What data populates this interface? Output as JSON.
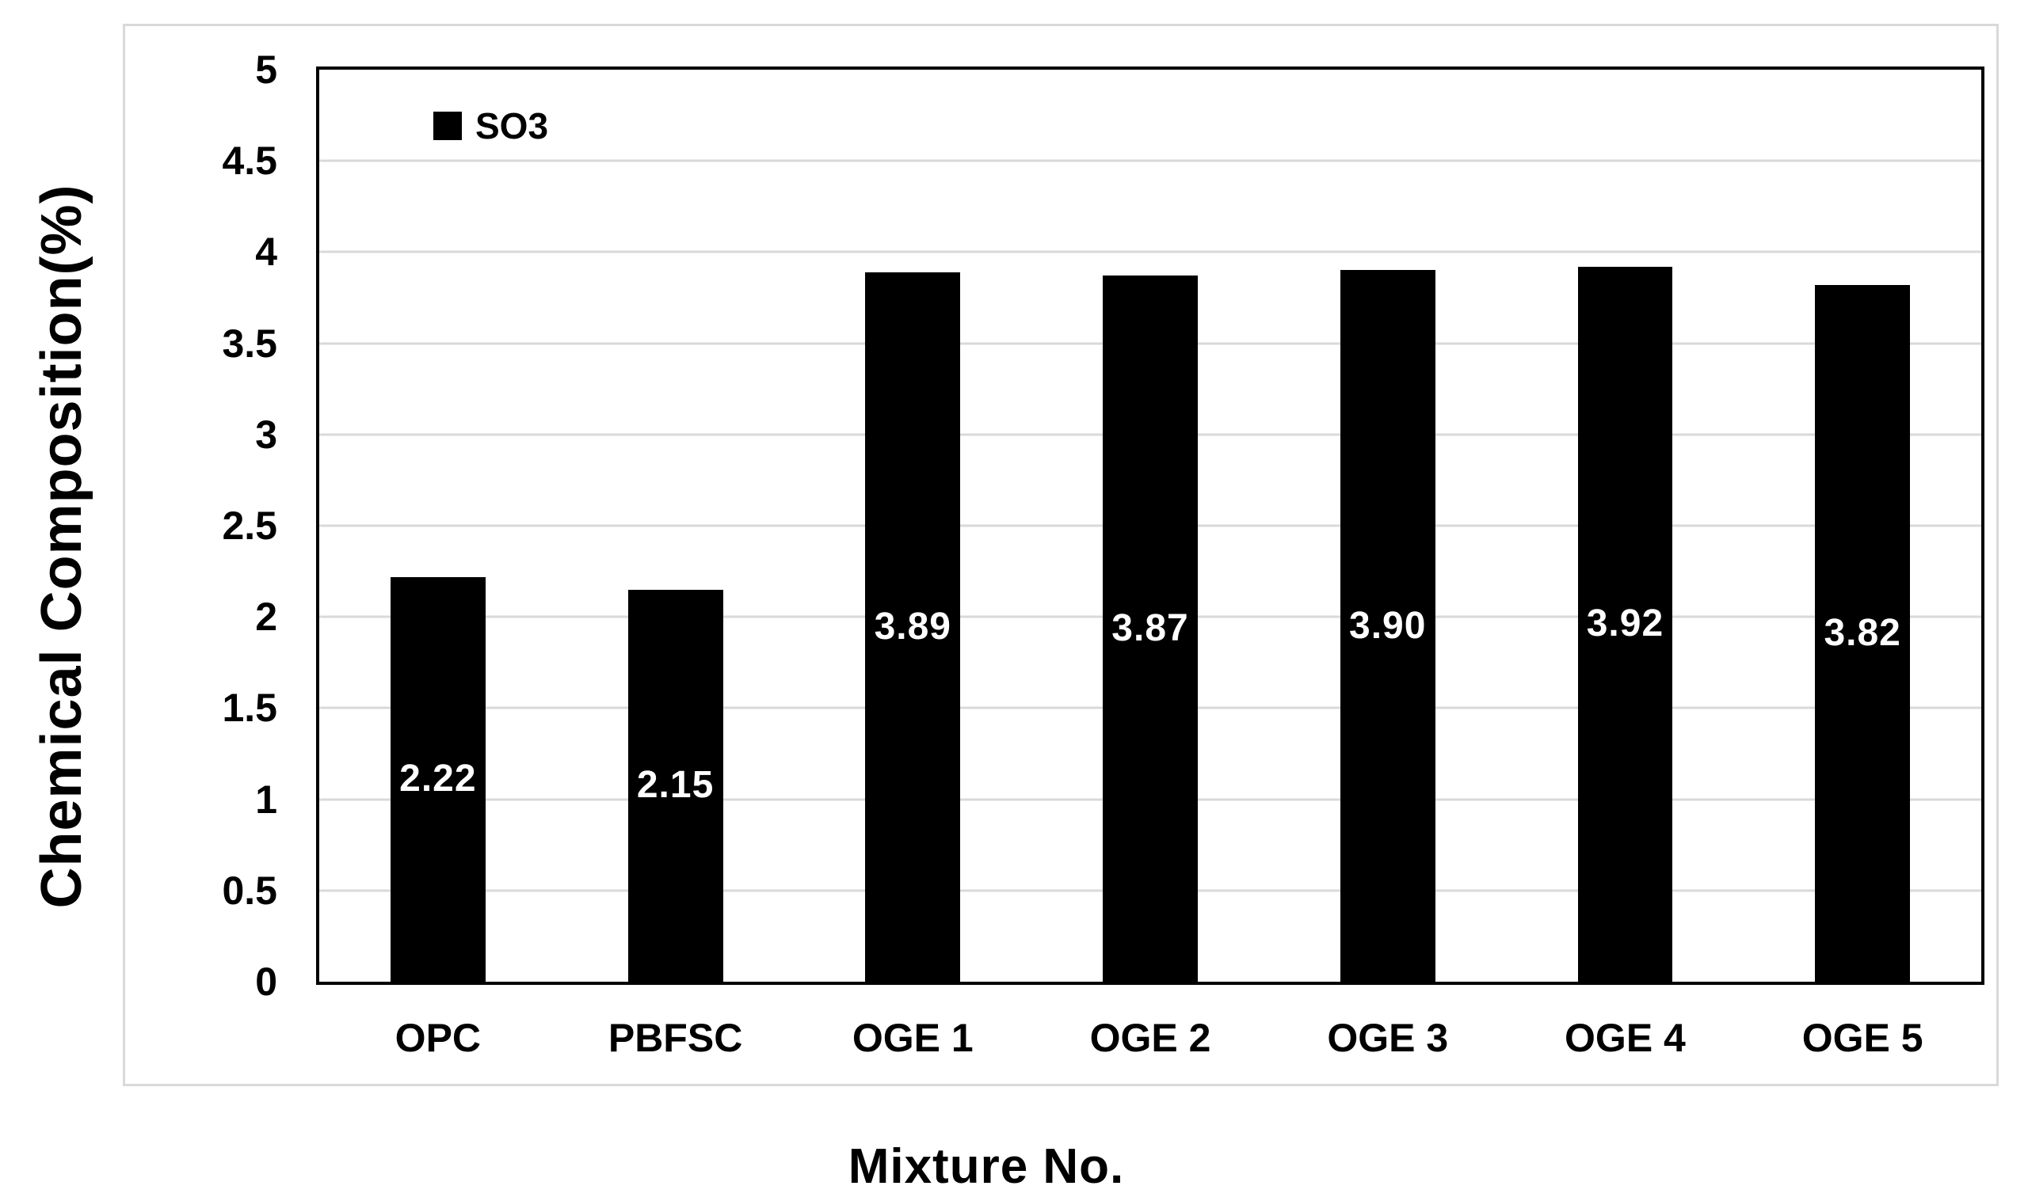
{
  "chart_data": {
    "type": "bar",
    "categories": [
      "OPC",
      "PBFSC",
      "OGE 1",
      "OGE 2",
      "OGE 3",
      "OGE 4",
      "OGE 5"
    ],
    "values": [
      2.22,
      2.15,
      3.89,
      3.87,
      3.9,
      3.92,
      3.82
    ],
    "value_labels": [
      "2.22",
      "2.15",
      "3.89",
      "3.87",
      "3.90",
      "3.92",
      "3.82"
    ],
    "series_name": "SO3",
    "xlabel": "Mixture No.",
    "ylabel": "Chemical Composition(%)",
    "ylim": [
      0,
      5
    ],
    "ytick_step": 0.5,
    "yticks": [
      "5",
      "4.5",
      "4",
      "3.5",
      "3",
      "2.5",
      "2",
      "1.5",
      "1",
      "0.5",
      "0"
    ],
    "grid": true,
    "legend_position": "top-left-inside",
    "bar_color": "#000000",
    "bar_label_color": "#ffffff",
    "gridline_color": "#d9d9d9",
    "axis_color": "#000000",
    "frame_color": "#d9d9d9"
  }
}
